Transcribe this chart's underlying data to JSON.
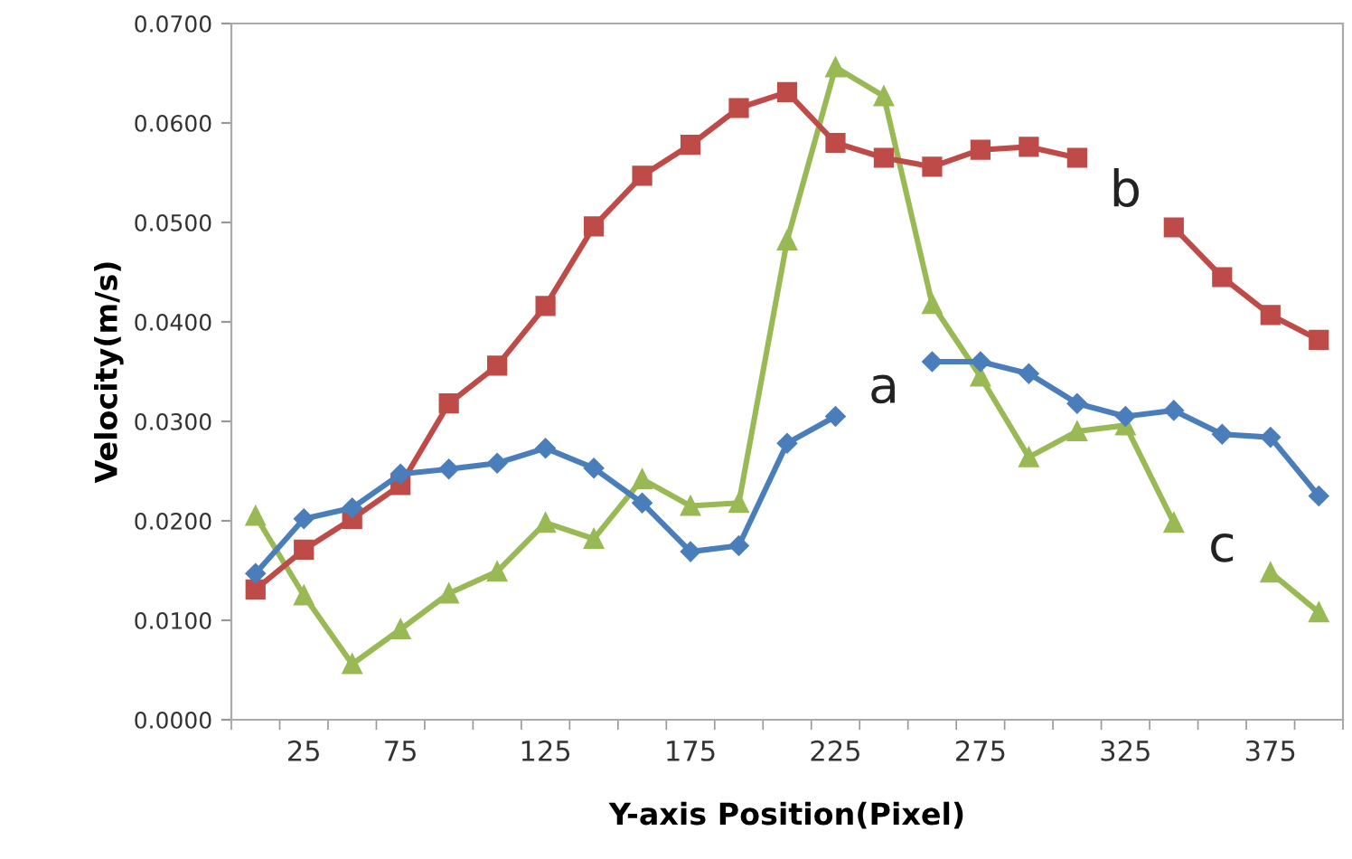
{
  "chart_data": {
    "type": "line",
    "xlabel": "Y-axis Position(Pixel)",
    "ylabel": "Velocity(m/s)",
    "categories": [
      null,
      "25",
      null,
      "75",
      null,
      null,
      "125",
      null,
      null,
      "175",
      null,
      null,
      "225",
      null,
      null,
      "275",
      null,
      null,
      "325",
      null,
      null,
      "375",
      null
    ],
    "series": [
      {
        "name": "a",
        "color": "#4a7ebb",
        "marker": "diamond",
        "values": [
          0.0147,
          0.0202,
          0.0213,
          0.0247,
          0.0252,
          0.0258,
          0.0273,
          0.0253,
          0.0218,
          0.0169,
          0.0175,
          0.0278,
          0.0305,
          null,
          0.036,
          0.036,
          0.0348,
          0.0318,
          0.0305,
          0.0311,
          0.0287,
          0.0284,
          0.0225
        ]
      },
      {
        "name": "b",
        "color": "#be4b48",
        "marker": "square",
        "values": [
          0.0131,
          0.0171,
          0.0202,
          0.0236,
          0.0318,
          0.0356,
          0.0416,
          0.0496,
          0.0547,
          0.0578,
          0.0615,
          0.0631,
          0.058,
          0.0565,
          0.0556,
          0.0573,
          0.0576,
          0.0565,
          null,
          0.0495,
          0.0445,
          0.0407,
          0.0382
        ]
      },
      {
        "name": "c",
        "color": "#98b954",
        "marker": "triangle",
        "values": [
          0.0205,
          0.0125,
          0.0056,
          0.0091,
          0.0127,
          0.0149,
          0.0198,
          0.0182,
          0.0242,
          0.0215,
          0.0218,
          0.0482,
          0.0656,
          0.0627,
          0.0418,
          0.0345,
          0.0264,
          0.029,
          0.0296,
          0.0198,
          null,
          0.0148,
          0.0108
        ]
      }
    ],
    "ylim": [
      0,
      0.07
    ],
    "yticks": [
      {
        "value": 0,
        "label": "0.0000"
      },
      {
        "value": 0.01,
        "label": "0.0100"
      },
      {
        "value": 0.02,
        "label": "0.0200"
      },
      {
        "value": 0.03,
        "label": "0.0300"
      },
      {
        "value": 0.04,
        "label": "0.0400"
      },
      {
        "value": 0.05,
        "label": "0.0500"
      },
      {
        "value": 0.06,
        "label": "0.0600"
      },
      {
        "value": 0.07,
        "label": "0.0700"
      }
    ],
    "grid": false,
    "legend": false,
    "line_style": "solid"
  }
}
